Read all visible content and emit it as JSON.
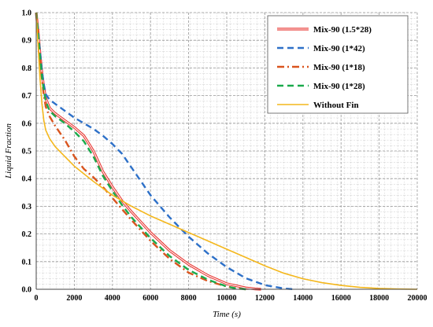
{
  "chart_data": {
    "type": "line",
    "xlabel": "Time (s)",
    "ylabel": "Liquid Fraction",
    "xlim": [
      0,
      20000
    ],
    "ylim": [
      0,
      1.0
    ],
    "xticks": [
      0,
      2000,
      4000,
      6000,
      8000,
      10000,
      12000,
      14000,
      16000,
      18000,
      20000
    ],
    "yticks": [
      0.0,
      0.1,
      0.2,
      0.3,
      0.4,
      0.5,
      0.6,
      0.7,
      0.8,
      0.9,
      1.0
    ],
    "grid": "dashed-minor",
    "legend_position": "top-right",
    "series": [
      {
        "name": "Mix-90 (1.5*28)",
        "color": "#e8332f",
        "style": "double",
        "x": [
          0,
          100,
          200,
          300,
          400,
          500,
          700,
          1000,
          1500,
          2000,
          2500,
          3000,
          3500,
          4000,
          4500,
          5000,
          6000,
          7000,
          8000,
          9000,
          10000,
          11000,
          11500,
          11800
        ],
        "y": [
          1.0,
          0.93,
          0.85,
          0.78,
          0.73,
          0.69,
          0.655,
          0.635,
          0.61,
          0.585,
          0.555,
          0.5,
          0.425,
          0.37,
          0.32,
          0.28,
          0.205,
          0.14,
          0.09,
          0.05,
          0.02,
          0.005,
          0.001,
          0.0
        ]
      },
      {
        "name": "Mix-90 (1*42)",
        "color": "#2d70c8",
        "style": "dash",
        "x": [
          0,
          100,
          200,
          300,
          400,
          500,
          700,
          1000,
          1500,
          2000,
          2500,
          3000,
          3500,
          4000,
          4500,
          5000,
          6000,
          7000,
          8000,
          9000,
          10000,
          11000,
          12000,
          13000,
          13500
        ],
        "y": [
          1.0,
          0.93,
          0.86,
          0.79,
          0.74,
          0.705,
          0.685,
          0.67,
          0.645,
          0.62,
          0.6,
          0.58,
          0.555,
          0.525,
          0.49,
          0.44,
          0.34,
          0.26,
          0.19,
          0.13,
          0.08,
          0.04,
          0.015,
          0.003,
          0.0
        ]
      },
      {
        "name": "Mix-90 (1*18)",
        "color": "#d9541e",
        "style": "dashdot",
        "x": [
          0,
          100,
          200,
          300,
          400,
          500,
          700,
          1000,
          1500,
          2000,
          2500,
          3000,
          3500,
          4000,
          5000,
          6000,
          7000,
          8000,
          9000,
          10000,
          10500,
          11000
        ],
        "y": [
          1.0,
          0.92,
          0.83,
          0.76,
          0.7,
          0.66,
          0.625,
          0.59,
          0.54,
          0.48,
          0.435,
          0.405,
          0.37,
          0.33,
          0.25,
          0.175,
          0.11,
          0.06,
          0.03,
          0.01,
          0.003,
          0.0
        ]
      },
      {
        "name": "Mix-90 (1*28)",
        "color": "#1aaa4b",
        "style": "dash",
        "x": [
          0,
          100,
          200,
          300,
          400,
          500,
          700,
          1000,
          1500,
          2000,
          2500,
          3000,
          3500,
          4000,
          4500,
          5000,
          6000,
          7000,
          8000,
          9000,
          10000,
          10500,
          11000
        ],
        "y": [
          1.0,
          0.92,
          0.84,
          0.77,
          0.72,
          0.68,
          0.645,
          0.625,
          0.6,
          0.57,
          0.535,
          0.48,
          0.41,
          0.355,
          0.305,
          0.26,
          0.185,
          0.12,
          0.07,
          0.035,
          0.01,
          0.003,
          0.0
        ]
      },
      {
        "name": "Without Fin",
        "color": "#f4b71c",
        "style": "solid",
        "x": [
          0,
          100,
          200,
          300,
          400,
          500,
          700,
          1000,
          1500,
          2000,
          3000,
          4000,
          5000,
          6000,
          7000,
          8000,
          9000,
          10000,
          11000,
          12000,
          13000,
          14000,
          15000,
          16000,
          17000,
          18000,
          19000,
          20000
        ],
        "y": [
          1.0,
          0.88,
          0.76,
          0.67,
          0.61,
          0.575,
          0.545,
          0.515,
          0.48,
          0.445,
          0.39,
          0.34,
          0.3,
          0.265,
          0.235,
          0.205,
          0.175,
          0.145,
          0.115,
          0.085,
          0.058,
          0.038,
          0.024,
          0.014,
          0.007,
          0.003,
          0.001,
          0.0
        ]
      }
    ]
  }
}
